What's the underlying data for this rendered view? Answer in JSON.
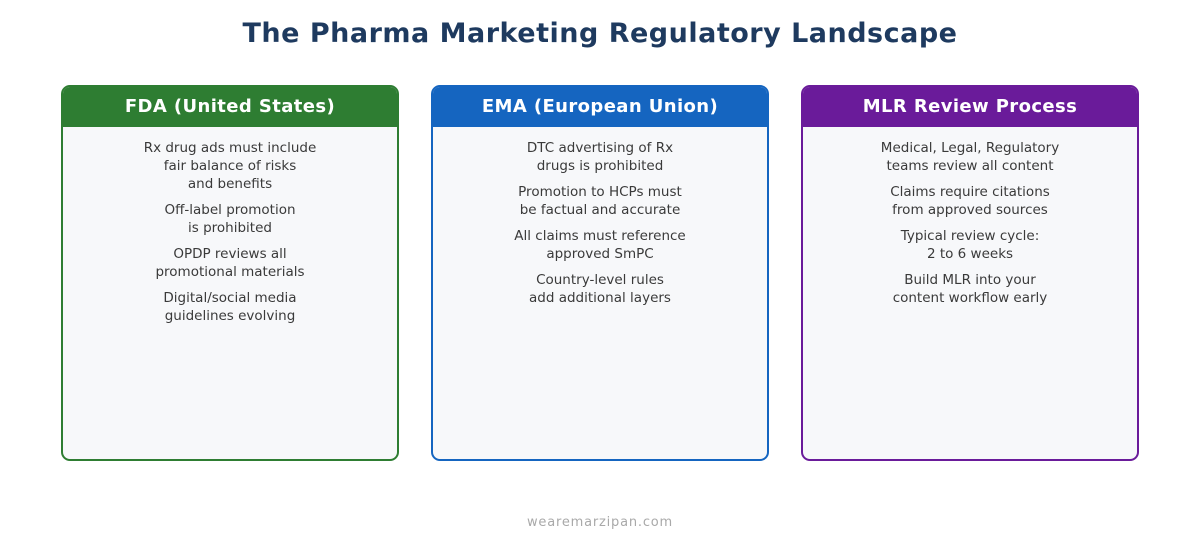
{
  "page": {
    "title": "The Pharma Marketing Regulatory Landscape",
    "title_color": "#1e3a5f",
    "footer": "wearemarzipan.com",
    "footer_color": "#a9a9a9"
  },
  "cards": [
    {
      "title": "FDA (United States)",
      "color": "#2e7d32",
      "items": [
        "Rx drug ads must include\nfair balance of risks\nand benefits",
        "Off-label promotion\nis prohibited",
        "OPDP reviews all\npromotional materials",
        "Digital/social media\nguidelines evolving"
      ]
    },
    {
      "title": "EMA (European Union)",
      "color": "#1565c0",
      "items": [
        "DTC advertising of Rx\ndrugs is prohibited",
        "Promotion to HCPs must\nbe factual and accurate",
        "All claims must reference\napproved SmPC",
        "Country-level rules\nadd additional layers"
      ]
    },
    {
      "title": "MLR Review Process",
      "color": "#6a1b9a",
      "items": [
        "Medical, Legal, Regulatory\nteams review all content",
        "Claims require citations\nfrom approved sources",
        "Typical review cycle:\n2 to 6 weeks",
        "Build MLR into your\ncontent workflow early"
      ]
    }
  ]
}
